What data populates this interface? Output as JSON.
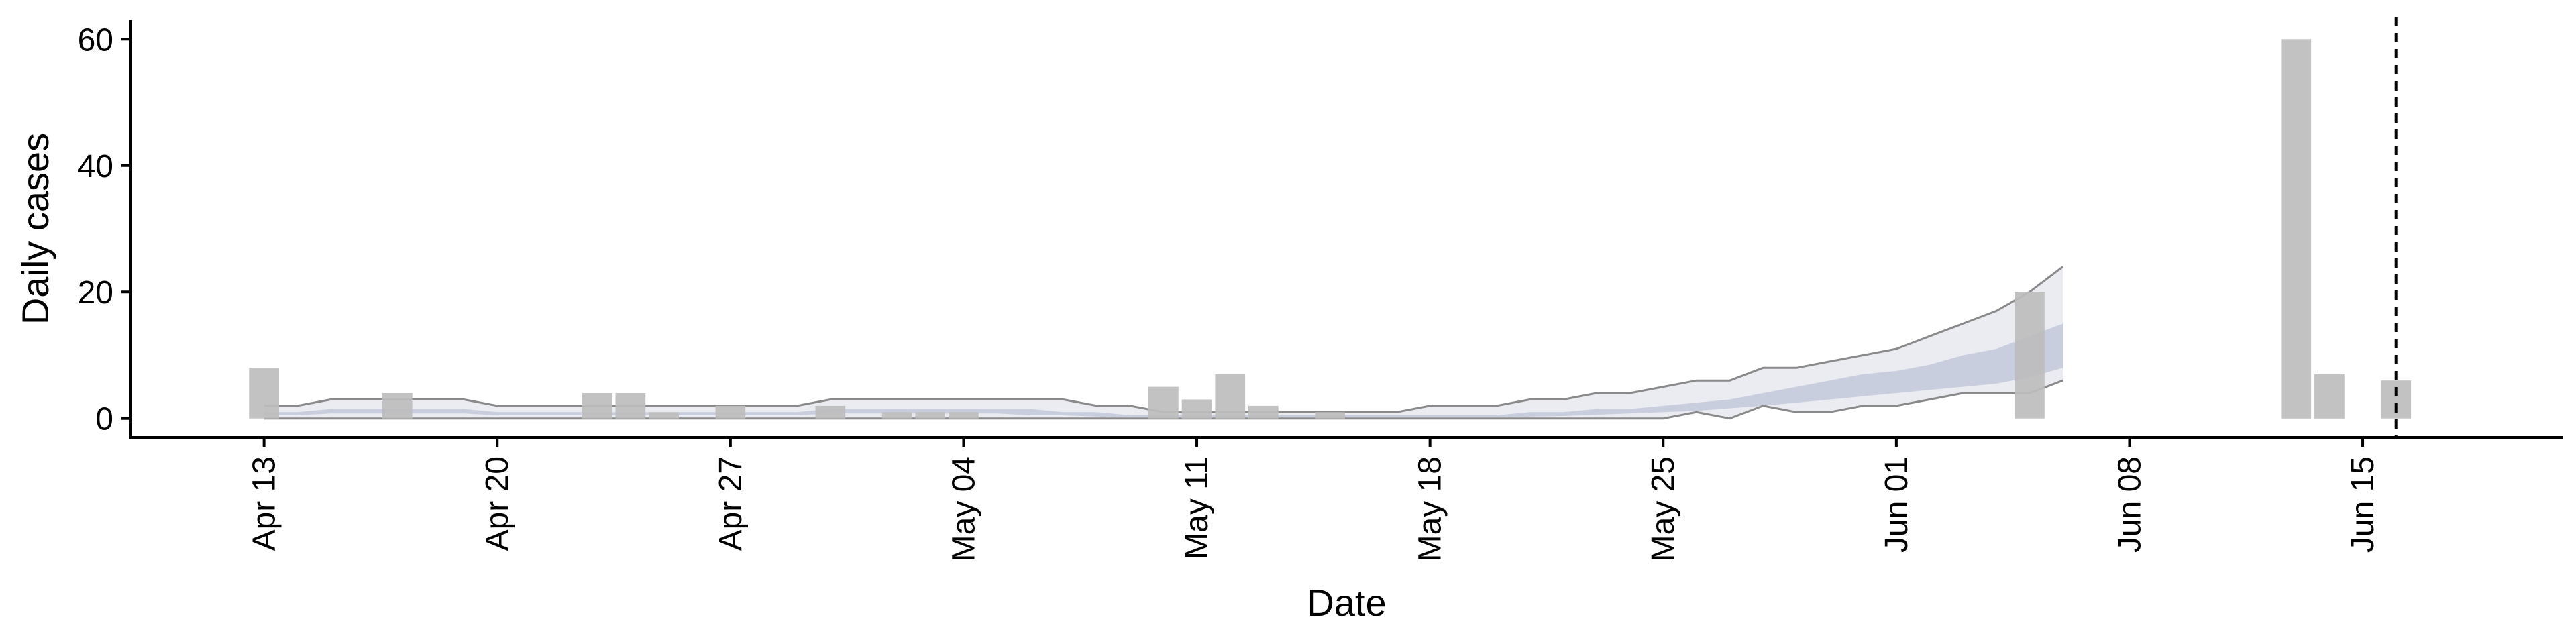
{
  "chart_data": {
    "type": "bar",
    "xlabel": "Date",
    "ylabel": "Daily cases",
    "ylim": [
      -3,
      63
    ],
    "xlim": [
      "2020-04-09",
      "2020-06-21"
    ],
    "yticks": [
      0,
      20,
      40,
      60
    ],
    "xticks": [
      {
        "date": "2020-04-13",
        "label": "Apr 13"
      },
      {
        "date": "2020-04-20",
        "label": "Apr 20"
      },
      {
        "date": "2020-04-27",
        "label": "Apr 27"
      },
      {
        "date": "2020-05-04",
        "label": "May 04"
      },
      {
        "date": "2020-05-11",
        "label": "May 11"
      },
      {
        "date": "2020-05-18",
        "label": "May 18"
      },
      {
        "date": "2020-05-25",
        "label": "May 25"
      },
      {
        "date": "2020-06-01",
        "label": "Jun 01"
      },
      {
        "date": "2020-06-08",
        "label": "Jun 08"
      },
      {
        "date": "2020-06-15",
        "label": "Jun 15"
      }
    ],
    "grid": false,
    "legend": "none",
    "colors": {
      "bars": "#bdbdbd",
      "outer_band": "#e4e6ec",
      "inner_band": "#c5cbdc",
      "band_edge": "#8a8a8a",
      "vline": "#000000"
    },
    "bars": [
      {
        "date": "2020-04-13",
        "value": 8
      },
      {
        "date": "2020-04-17",
        "value": 4
      },
      {
        "date": "2020-04-23",
        "value": 4
      },
      {
        "date": "2020-04-24",
        "value": 4
      },
      {
        "date": "2020-04-25",
        "value": 1
      },
      {
        "date": "2020-04-27",
        "value": 2
      },
      {
        "date": "2020-04-30",
        "value": 2
      },
      {
        "date": "2020-05-02",
        "value": 1
      },
      {
        "date": "2020-05-03",
        "value": 1
      },
      {
        "date": "2020-05-04",
        "value": 1
      },
      {
        "date": "2020-05-10",
        "value": 5
      },
      {
        "date": "2020-05-11",
        "value": 3
      },
      {
        "date": "2020-05-12",
        "value": 7
      },
      {
        "date": "2020-05-13",
        "value": 2
      },
      {
        "date": "2020-05-15",
        "value": 1
      },
      {
        "date": "2020-06-05",
        "value": 20
      },
      {
        "date": "2020-06-13",
        "value": 60
      },
      {
        "date": "2020-06-14",
        "value": 7
      },
      {
        "date": "2020-06-16",
        "value": 6
      }
    ],
    "bands": {
      "dates": [
        "2020-04-13",
        "2020-04-14",
        "2020-04-15",
        "2020-04-16",
        "2020-04-17",
        "2020-04-18",
        "2020-04-19",
        "2020-04-20",
        "2020-04-21",
        "2020-04-22",
        "2020-04-23",
        "2020-04-24",
        "2020-04-25",
        "2020-04-26",
        "2020-04-27",
        "2020-04-28",
        "2020-04-29",
        "2020-04-30",
        "2020-05-01",
        "2020-05-02",
        "2020-05-03",
        "2020-05-04",
        "2020-05-05",
        "2020-05-06",
        "2020-05-07",
        "2020-05-08",
        "2020-05-09",
        "2020-05-10",
        "2020-05-11",
        "2020-05-12",
        "2020-05-13",
        "2020-05-14",
        "2020-05-15",
        "2020-05-16",
        "2020-05-17",
        "2020-05-18",
        "2020-05-19",
        "2020-05-20",
        "2020-05-21",
        "2020-05-22",
        "2020-05-23",
        "2020-05-24",
        "2020-05-25",
        "2020-05-26",
        "2020-05-27",
        "2020-05-28",
        "2020-05-29",
        "2020-05-30",
        "2020-05-31",
        "2020-06-01",
        "2020-06-02",
        "2020-06-03",
        "2020-06-04",
        "2020-06-05",
        "2020-06-06"
      ],
      "outer_upper": [
        2,
        2,
        3,
        3,
        3,
        3,
        3,
        2,
        2,
        2,
        2,
        2,
        2,
        2,
        2,
        2,
        2,
        3,
        3,
        3,
        3,
        3,
        3,
        3,
        3,
        2,
        2,
        1,
        1,
        1,
        1,
        1,
        1,
        1,
        1,
        2,
        2,
        2,
        3,
        3,
        4,
        4,
        5,
        6,
        6,
        8,
        8,
        9,
        10,
        11,
        13,
        15,
        17,
        20,
        24
      ],
      "inner_upper": [
        1,
        1,
        1.5,
        1.5,
        1.5,
        1.5,
        1.5,
        1,
        1,
        1,
        1,
        1,
        1,
        1,
        1,
        1,
        1,
        1.5,
        1.5,
        1.5,
        1.5,
        1.5,
        1.5,
        1.5,
        1,
        1,
        0.5,
        0.5,
        0.5,
        0.5,
        0.5,
        0.5,
        0.5,
        0.5,
        0.5,
        0.5,
        0.5,
        0.5,
        1,
        1,
        1.5,
        1.5,
        2,
        2.5,
        3,
        4,
        5,
        6,
        7,
        7.5,
        8.5,
        10,
        11,
        13,
        15
      ],
      "inner_lower": [
        0.5,
        0.5,
        0.8,
        0.8,
        0.8,
        0.8,
        0.8,
        0.5,
        0.5,
        0.5,
        0.5,
        0.5,
        0.5,
        0.5,
        0.5,
        0.5,
        0.5,
        0.8,
        0.8,
        0.8,
        0.8,
        0.8,
        0.8,
        0.5,
        0.5,
        0.3,
        0.2,
        0.2,
        0.2,
        0.2,
        0.2,
        0.2,
        0.2,
        0.2,
        0.2,
        0.2,
        0.2,
        0.2,
        0.3,
        0.4,
        0.6,
        0.8,
        1,
        1.2,
        1.6,
        2,
        2.5,
        3,
        3.5,
        4,
        4.5,
        5,
        5.5,
        6.5,
        8
      ],
      "outer_lower": [
        0,
        0,
        0,
        0,
        0,
        0,
        0,
        0,
        0,
        0,
        0,
        0,
        0,
        0,
        0,
        0,
        0,
        0,
        0,
        0,
        0,
        0,
        0,
        0,
        0,
        0,
        0,
        0,
        0,
        0,
        0,
        0,
        0,
        0,
        0,
        0,
        0,
        0,
        0,
        0,
        0,
        0,
        0,
        1,
        0,
        2,
        1,
        1,
        2,
        2,
        3,
        4,
        4,
        4,
        6
      ]
    },
    "vline_date": "2020-06-16"
  }
}
